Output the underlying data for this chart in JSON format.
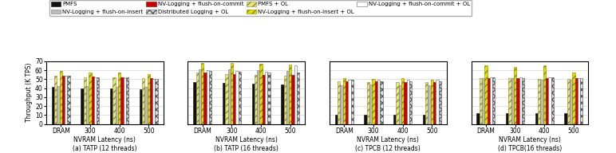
{
  "subplots": [
    {
      "title": "(a) TATP (12 threads)",
      "data": {
        "PMFS": [
          41,
          40,
          40,
          39
        ],
        "PMFS + OL": [
          54,
          52,
          52,
          51
        ],
        "NV-Logging + flush-on-insert": [
          42,
          42,
          41,
          41
        ],
        "NV-Logging + flush-on-insert + OL": [
          59,
          57,
          57,
          56
        ],
        "NV-Logging + flush-on-commit": [
          54,
          53,
          52,
          51
        ],
        "NV-Logging + flush-on-commit + OL": [
          54,
          52,
          51,
          50
        ],
        "Distributed Logging + OL": [
          54,
          52,
          52,
          50
        ]
      }
    },
    {
      "title": "(b) TATP (16 threads)",
      "data": {
        "PMFS": [
          47,
          46,
          45,
          44
        ],
        "PMFS + OL": [
          57,
          56,
          55,
          54
        ],
        "NV-Logging + flush-on-insert": [
          61,
          61,
          60,
          59
        ],
        "NV-Logging + flush-on-insert + OL": [
          68,
          68,
          67,
          66
        ],
        "NV-Logging + flush-on-commit": [
          57,
          56,
          55,
          55
        ],
        "NV-Logging + flush-on-commit + OL": [
          60,
          59,
          58,
          65
        ],
        "Distributed Logging + OL": [
          59,
          58,
          57,
          57
        ]
      }
    },
    {
      "title": "(c) TPCB (12 threads)",
      "data": {
        "PMFS": [
          10,
          10,
          10,
          10
        ],
        "PMFS + OL": [
          48,
          47,
          47,
          47
        ],
        "NV-Logging + flush-on-insert": [
          43,
          44,
          43,
          43
        ],
        "NV-Logging + flush-on-insert + OL": [
          51,
          50,
          51,
          49
        ],
        "NV-Logging + flush-on-commit": [
          48,
          48,
          47,
          47
        ],
        "NV-Logging + flush-on-commit + OL": [
          49,
          49,
          49,
          49
        ],
        "Distributed Logging + OL": [
          49,
          48,
          48,
          48
        ]
      }
    },
    {
      "title": "(d) TPCB(16 threads)",
      "data": {
        "PMFS": [
          12,
          12,
          12,
          12
        ],
        "PMFS + OL": [
          51,
          51,
          50,
          50
        ],
        "NV-Logging + flush-on-insert": [
          51,
          51,
          49,
          49
        ],
        "NV-Logging + flush-on-insert + OL": [
          65,
          64,
          65,
          57
        ],
        "NV-Logging + flush-on-commit": [
          51,
          51,
          51,
          51
        ],
        "NV-Logging + flush-on-commit + OL": [
          52,
          52,
          52,
          51
        ],
        "Distributed Logging + OL": [
          52,
          51,
          52,
          51
        ]
      }
    }
  ],
  "categories": [
    "DRAM",
    "300",
    "400",
    "500"
  ],
  "xlabel": "NVRAM Latency (ns)",
  "ylabel": "Throughput (K TPS)",
  "ylim": [
    0,
    70
  ],
  "yticks": [
    0,
    10,
    20,
    30,
    40,
    50,
    60,
    70
  ],
  "series_order": [
    "PMFS",
    "PMFS + OL",
    "NV-Logging + flush-on-insert",
    "NV-Logging + flush-on-insert + OL",
    "NV-Logging + flush-on-commit",
    "NV-Logging + flush-on-commit + OL",
    "Distributed Logging + OL"
  ],
  "series_styles": {
    "PMFS": {
      "color": "#111111",
      "hatch": "",
      "edgecolor": "#111111"
    },
    "PMFS + OL": {
      "color": "#e8e870",
      "hatch": "////",
      "edgecolor": "#888844"
    },
    "NV-Logging + flush-on-insert": {
      "color": "#bbbbbb",
      "hatch": "",
      "edgecolor": "#777777"
    },
    "NV-Logging + flush-on-insert + OL": {
      "color": "#dddd00",
      "hatch": "////",
      "edgecolor": "#888800"
    },
    "NV-Logging + flush-on-commit": {
      "color": "#cc0000",
      "hatch": "",
      "edgecolor": "#880000"
    },
    "NV-Logging + flush-on-commit + OL": {
      "color": "#ffffff",
      "hatch": "",
      "edgecolor": "#666666"
    },
    "Distributed Logging + OL": {
      "color": "#dddddd",
      "hatch": "xxxx",
      "edgecolor": "#555555"
    }
  },
  "legend_row1": [
    "PMFS",
    "NV-Logging + flush-on-insert",
    "NV-Logging + flush-on-commit",
    "Distributed Logging + OL"
  ],
  "legend_row2": [
    "PMFS + OL",
    "NV-Logging + flush-on-insert + OL",
    "NV-Logging + flush-on-commit + OL"
  ]
}
